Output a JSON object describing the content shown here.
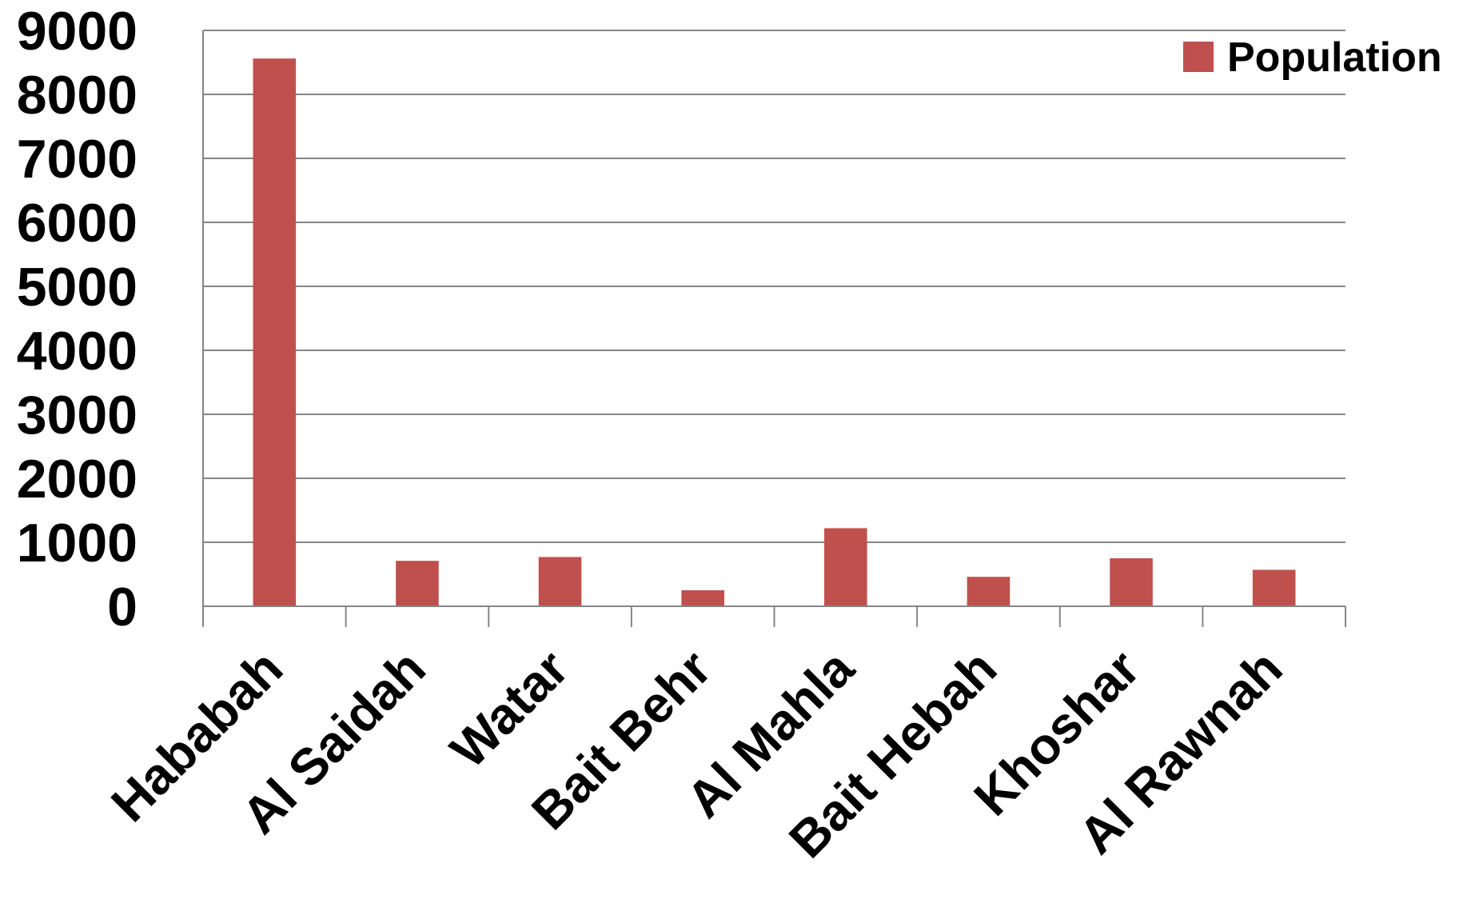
{
  "chart_data": {
    "type": "bar",
    "title": "",
    "xlabel": "",
    "ylabel": "",
    "categories": [
      "Hababah",
      "Al Saidah",
      "Watar",
      "Bait Behr",
      "Al Mahla",
      "Bait Hebah",
      "Khoshar",
      "Al Rawnah"
    ],
    "series": [
      {
        "name": "Population",
        "color": "#c0504d",
        "values": [
          8560,
          710,
          770,
          250,
          1220,
          460,
          750,
          570
        ]
      }
    ],
    "ylim": [
      0,
      9000
    ],
    "yticks": [
      0,
      1000,
      2000,
      3000,
      4000,
      5000,
      6000,
      7000,
      8000,
      9000
    ],
    "grid": true,
    "legend": "top-right"
  }
}
